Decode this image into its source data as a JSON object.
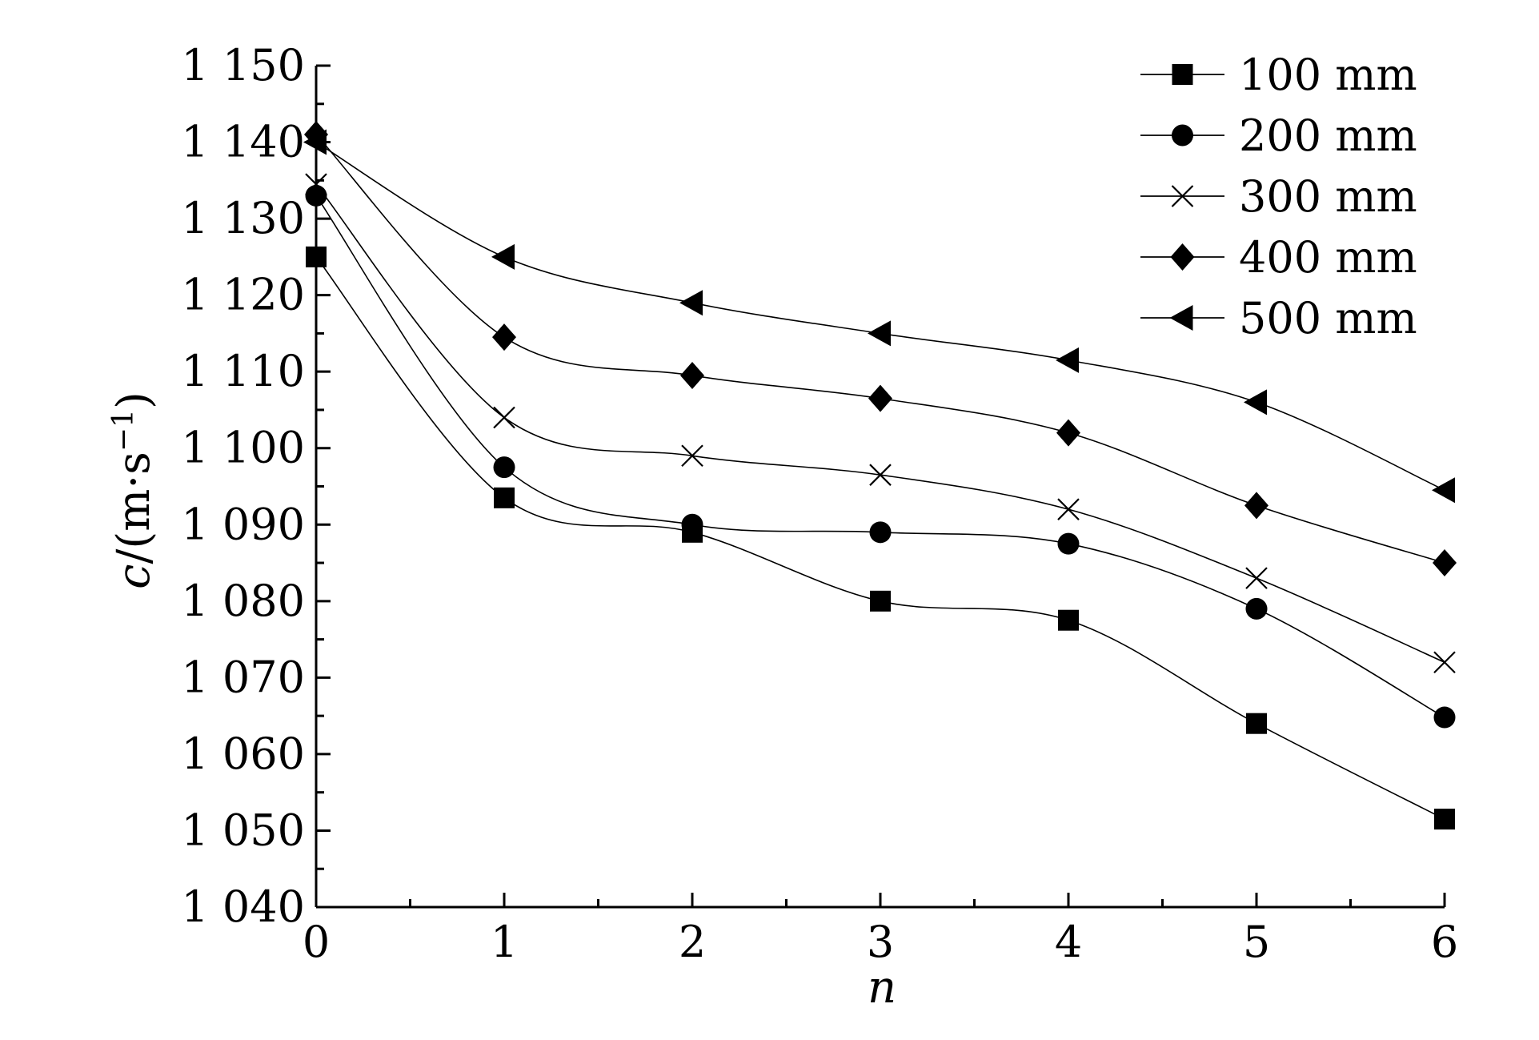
{
  "chart_data": {
    "type": "line",
    "xlabel": "n",
    "ylabel_main": "c",
    "ylabel_unit": "/(m·s",
    "ylabel_exp": "−1",
    "ylabel_close": ")",
    "xlim": [
      0,
      6
    ],
    "ylim": [
      1040,
      1150
    ],
    "x": [
      0,
      1,
      2,
      3,
      4,
      5,
      6
    ],
    "xticks": [
      "0",
      "1",
      "2",
      "3",
      "4",
      "5",
      "6"
    ],
    "yticks": [
      {
        "value": 1040,
        "label": "1 040"
      },
      {
        "value": 1050,
        "label": "1 050"
      },
      {
        "value": 1060,
        "label": "1 060"
      },
      {
        "value": 1070,
        "label": "1 070"
      },
      {
        "value": 1080,
        "label": "1 080"
      },
      {
        "value": 1090,
        "label": "1 090"
      },
      {
        "value": 1100,
        "label": "1 100"
      },
      {
        "value": 1110,
        "label": "1 110"
      },
      {
        "value": 1120,
        "label": "1 120"
      },
      {
        "value": 1130,
        "label": "1 130"
      },
      {
        "value": 1140,
        "label": "1 140"
      },
      {
        "value": 1150,
        "label": "1 150"
      }
    ],
    "grid": false,
    "legend_position": "top-right",
    "series": [
      {
        "name": "100 mm",
        "marker": "square",
        "values": [
          1125,
          1093.5,
          1089,
          1080,
          1077.5,
          1064,
          1051.5
        ]
      },
      {
        "name": "200 mm",
        "marker": "circle",
        "values": [
          1133,
          1097.5,
          1090,
          1089,
          1087.5,
          1079,
          1064.8
        ]
      },
      {
        "name": "300 mm",
        "marker": "cross",
        "values": [
          1134.5,
          1104,
          1099,
          1096.5,
          1092,
          1083,
          1072
        ]
      },
      {
        "name": "400 mm",
        "marker": "diamond",
        "values": [
          1141,
          1114.5,
          1109.5,
          1106.5,
          1102,
          1092.5,
          1085
        ]
      },
      {
        "name": "500 mm",
        "marker": "triangle-left",
        "values": [
          1140,
          1125,
          1119,
          1115,
          1111.5,
          1106,
          1094.5
        ]
      }
    ]
  }
}
